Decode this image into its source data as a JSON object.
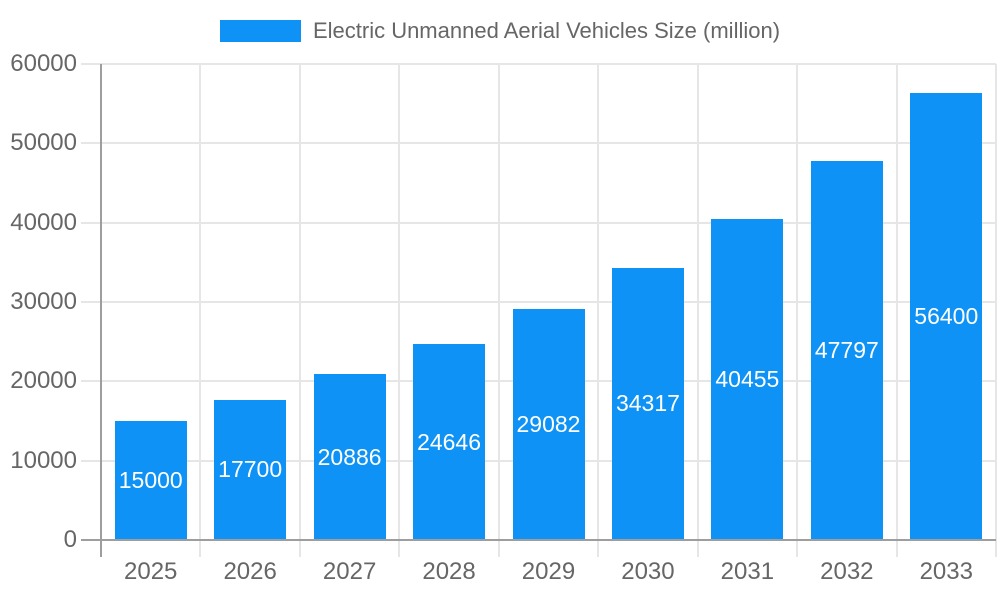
{
  "chart_data": {
    "type": "bar",
    "title": "Electric Unmanned Aerial Vehicles Size (million)",
    "categories": [
      "2025",
      "2026",
      "2027",
      "2028",
      "2029",
      "2030",
      "2031",
      "2032",
      "2033"
    ],
    "series": [
      {
        "name": "Electric Unmanned Aerial Vehicles Size (million)",
        "values": [
          15000,
          17700,
          20886,
          24646,
          29082,
          34317,
          40455,
          47797,
          56400
        ]
      }
    ],
    "bar_value_labels": [
      "15000",
      "17700",
      "20886",
      "24646",
      "29082",
      "34317",
      "40455",
      "47797",
      "56400"
    ],
    "xlabel": "",
    "ylabel": "",
    "ylim": [
      0,
      60000
    ],
    "yticks": [
      0,
      10000,
      20000,
      30000,
      40000,
      50000,
      60000
    ],
    "grid": true,
    "legend_position": "top-center",
    "colors": {
      "bar": "#0E92F5",
      "bar_label": "#FFFFFF",
      "tick_label": "#666666",
      "legend_label": "#666666",
      "gridline": "#E6E6E6",
      "axis_line": "#9E9E9E",
      "background": "#FFFFFF"
    }
  }
}
